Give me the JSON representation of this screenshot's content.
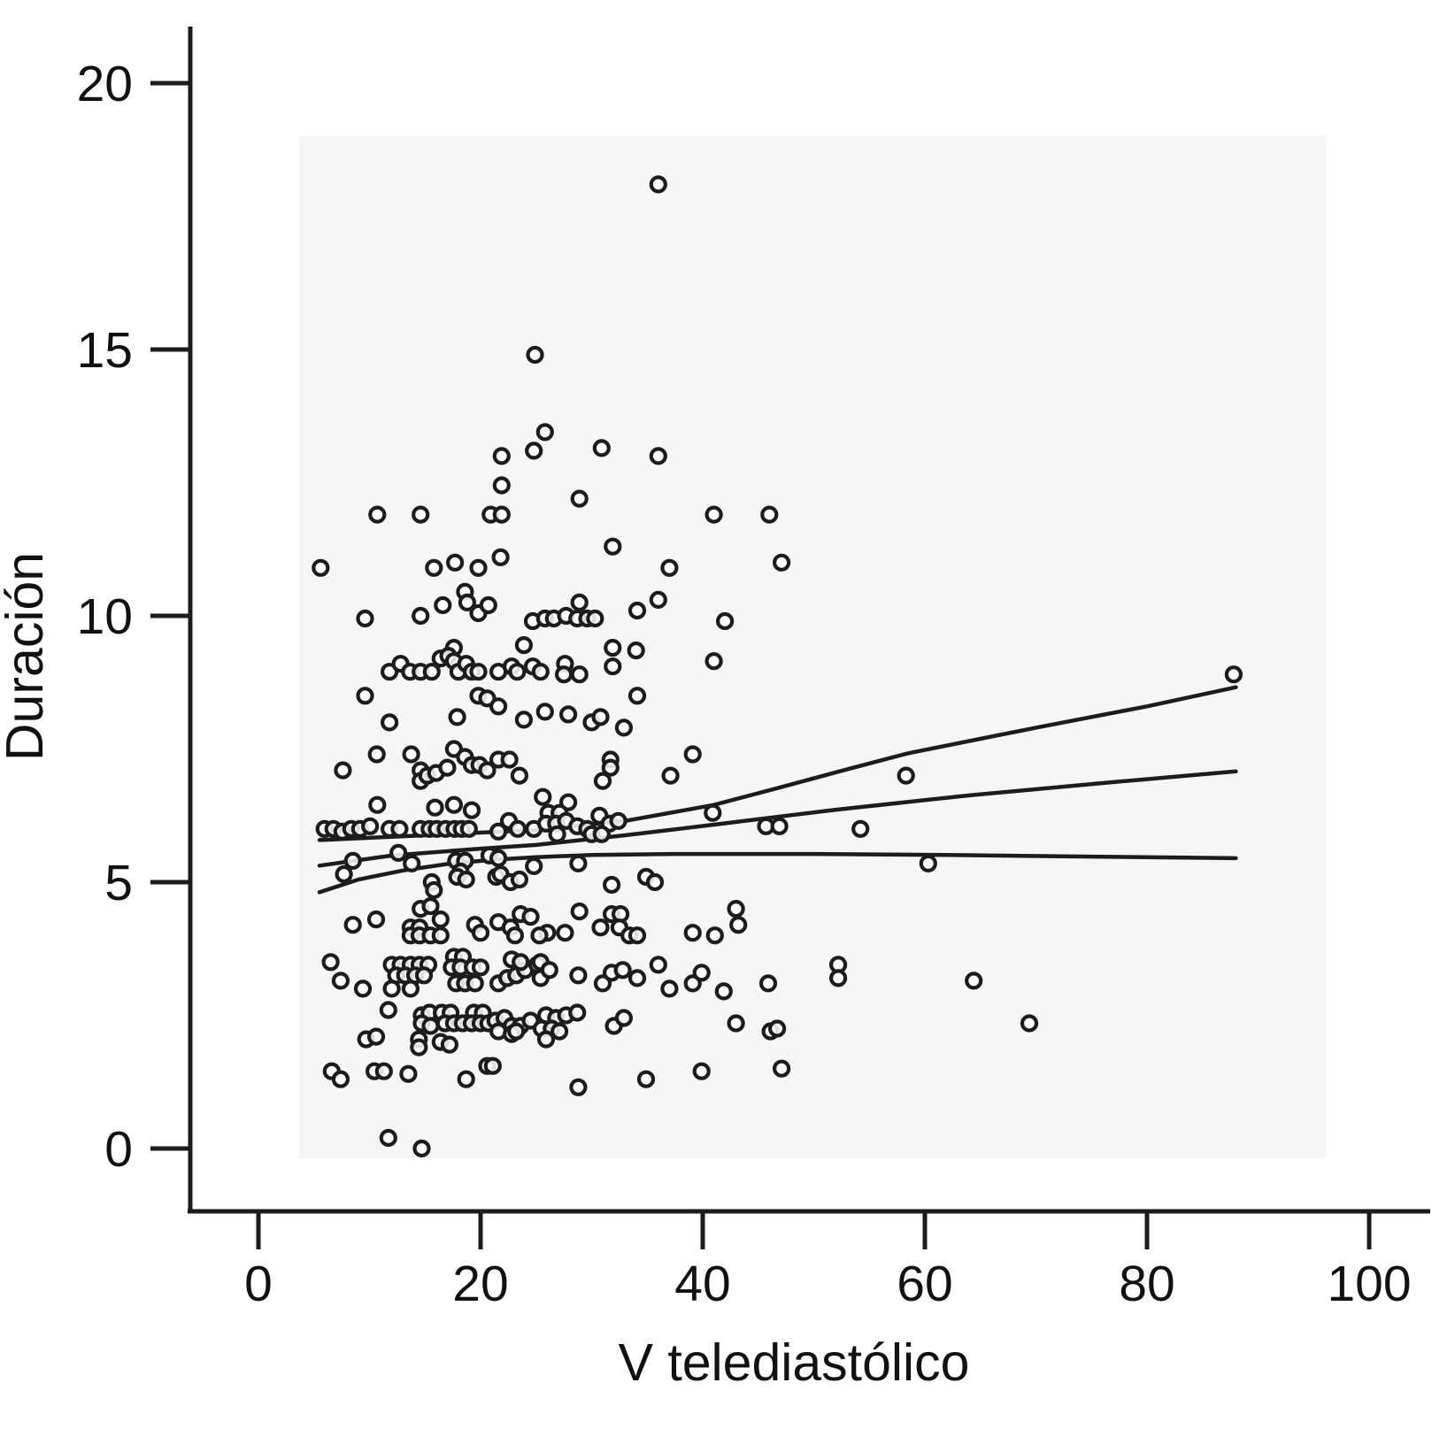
{
  "figure": {
    "ylabel": "Duración",
    "xlabel": "V telediastólico"
  },
  "chart_data": {
    "type": "scatter",
    "title": "",
    "xlabel": "V telediastólico",
    "ylabel": "Duración",
    "x_ticks": [
      0,
      20,
      40,
      60,
      80,
      100
    ],
    "y_ticks": [
      0,
      5,
      10,
      15,
      20
    ],
    "xlim": [
      -6,
      106
    ],
    "ylim": [
      -1.2,
      21.3
    ],
    "grid": false,
    "legend": null,
    "marker": {
      "shape": "open-circle",
      "color": "#1c1c1c",
      "radius_px": 8
    },
    "line_color": "#1c1c1c",
    "plot_bg": "#f6f6f4",
    "points": [
      [
        36,
        18.1
      ],
      [
        24.9,
        14.9
      ],
      [
        25.8,
        13.45
      ],
      [
        21.9,
        13.0
      ],
      [
        24.8,
        13.1
      ],
      [
        30.9,
        13.15
      ],
      [
        36,
        13.0
      ],
      [
        21.9,
        12.45
      ],
      [
        28.9,
        12.2
      ],
      [
        10.7,
        11.9
      ],
      [
        14.6,
        11.9
      ],
      [
        20.9,
        11.9
      ],
      [
        21.9,
        11.9
      ],
      [
        41,
        11.9
      ],
      [
        46,
        11.9
      ],
      [
        5.6,
        10.9
      ],
      [
        15.8,
        10.9
      ],
      [
        17.7,
        11.0
      ],
      [
        19.8,
        10.9
      ],
      [
        21.8,
        11.1
      ],
      [
        31.9,
        11.3
      ],
      [
        37,
        10.9
      ],
      [
        47.1,
        11.0
      ],
      [
        9.6,
        9.95
      ],
      [
        14.6,
        10.0
      ],
      [
        16.6,
        10.2
      ],
      [
        18.6,
        10.45
      ],
      [
        18.8,
        10.25
      ],
      [
        19.8,
        10.05
      ],
      [
        20.7,
        10.2
      ],
      [
        24.7,
        9.9
      ],
      [
        25.8,
        9.95
      ],
      [
        26.6,
        9.95
      ],
      [
        27.7,
        10.0
      ],
      [
        28.7,
        9.95
      ],
      [
        29.6,
        9.95
      ],
      [
        30.3,
        9.95
      ],
      [
        28.9,
        10.25
      ],
      [
        34.1,
        10.1
      ],
      [
        36,
        10.3
      ],
      [
        42,
        9.9
      ],
      [
        17.6,
        9.4
      ],
      [
        23.9,
        9.45
      ],
      [
        31.9,
        9.4
      ],
      [
        34,
        9.35
      ],
      [
        41,
        9.15
      ],
      [
        31.9,
        9.05
      ],
      [
        11.8,
        8.95
      ],
      [
        12.8,
        9.1
      ],
      [
        13.65,
        8.95
      ],
      [
        14.6,
        8.95
      ],
      [
        15.6,
        8.95
      ],
      [
        16.4,
        9.2
      ],
      [
        17.1,
        9.25
      ],
      [
        17.6,
        9.15
      ],
      [
        18,
        8.95
      ],
      [
        18.7,
        9.1
      ],
      [
        19.2,
        8.95
      ],
      [
        19.8,
        8.95
      ],
      [
        21.6,
        8.95
      ],
      [
        22.8,
        9.05
      ],
      [
        23.3,
        8.95
      ],
      [
        24.7,
        9.05
      ],
      [
        25.4,
        8.95
      ],
      [
        27.6,
        9.1
      ],
      [
        27.5,
        8.9
      ],
      [
        28.9,
        8.9
      ],
      [
        9.6,
        8.5
      ],
      [
        19.8,
        8.5
      ],
      [
        20.6,
        8.45
      ],
      [
        21.6,
        8.3
      ],
      [
        23.9,
        8.05
      ],
      [
        17.9,
        8.1
      ],
      [
        11.8,
        8.0
      ],
      [
        34.1,
        8.5
      ],
      [
        25.8,
        8.2
      ],
      [
        27.9,
        8.15
      ],
      [
        30,
        8.0
      ],
      [
        30.8,
        8.1
      ],
      [
        32.9,
        7.9
      ],
      [
        10.65,
        7.4
      ],
      [
        7.6,
        7.1
      ],
      [
        13.75,
        7.4
      ],
      [
        14.6,
        7.1
      ],
      [
        14.6,
        6.9
      ],
      [
        15.2,
        7.0
      ],
      [
        16,
        7.05
      ],
      [
        17,
        7.15
      ],
      [
        17.6,
        7.5
      ],
      [
        18.6,
        7.35
      ],
      [
        19.2,
        7.2
      ],
      [
        19.9,
        7.2
      ],
      [
        20.6,
        7.1
      ],
      [
        21.6,
        7.3
      ],
      [
        22.6,
        7.3
      ],
      [
        23.5,
        7.0
      ],
      [
        39.1,
        7.4
      ],
      [
        31.7,
        7.3
      ],
      [
        31.7,
        7.15
      ],
      [
        31,
        6.9
      ],
      [
        37.1,
        7.0
      ],
      [
        58.3,
        7.0
      ],
      [
        25.6,
        6.6
      ],
      [
        27.9,
        6.5
      ],
      [
        10.7,
        6.45
      ],
      [
        15.9,
        6.4
      ],
      [
        17.6,
        6.45
      ],
      [
        19.2,
        6.35
      ],
      [
        5.95,
        6.0
      ],
      [
        6.75,
        6.0
      ],
      [
        7.55,
        5.95
      ],
      [
        8.35,
        6.0
      ],
      [
        9.15,
        6.0
      ],
      [
        10.05,
        6.05
      ],
      [
        11.8,
        6.0
      ],
      [
        12.7,
        6.0
      ],
      [
        14.6,
        6.0
      ],
      [
        15.4,
        6.0
      ],
      [
        16.05,
        6.0
      ],
      [
        16.85,
        6.0
      ],
      [
        17.65,
        6.0
      ],
      [
        18.3,
        6.0
      ],
      [
        18.95,
        6.0
      ],
      [
        21.6,
        5.95
      ],
      [
        22.55,
        6.15
      ],
      [
        23.35,
        6.0
      ],
      [
        24.8,
        6.0
      ],
      [
        26.1,
        6.3
      ],
      [
        27.1,
        6.3
      ],
      [
        25.9,
        6.1
      ],
      [
        26.8,
        6.1
      ],
      [
        27.7,
        6.15
      ],
      [
        28.7,
        6.05
      ],
      [
        29.6,
        6.0
      ],
      [
        30.7,
        6.25
      ],
      [
        31.6,
        6.1
      ],
      [
        32.4,
        6.15
      ],
      [
        30,
        5.9
      ],
      [
        30.9,
        5.9
      ],
      [
        26.9,
        5.9
      ],
      [
        40.9,
        6.3
      ],
      [
        45.7,
        6.05
      ],
      [
        46.9,
        6.05
      ],
      [
        54.2,
        6.0
      ],
      [
        8.5,
        5.4
      ],
      [
        7.7,
        5.15
      ],
      [
        12.6,
        5.55
      ],
      [
        13.8,
        5.35
      ],
      [
        15.6,
        5.0
      ],
      [
        17.8,
        5.4
      ],
      [
        18.6,
        5.4
      ],
      [
        18.2,
        5.2
      ],
      [
        17.9,
        5.1
      ],
      [
        18.7,
        5.05
      ],
      [
        20.8,
        5.5
      ],
      [
        21.6,
        5.45
      ],
      [
        21.4,
        5.1
      ],
      [
        21.8,
        5.15
      ],
      [
        22.7,
        5.0
      ],
      [
        23.5,
        5.05
      ],
      [
        24.8,
        5.3
      ],
      [
        15.8,
        4.85
      ],
      [
        28.8,
        5.35
      ],
      [
        31.8,
        4.95
      ],
      [
        34.9,
        5.1
      ],
      [
        35.7,
        5.0
      ],
      [
        60.3,
        5.35
      ],
      [
        14.6,
        4.5
      ],
      [
        15.5,
        4.55
      ],
      [
        16.4,
        4.3
      ],
      [
        8.5,
        4.2
      ],
      [
        10.6,
        4.3
      ],
      [
        13.7,
        4.15
      ],
      [
        14.5,
        4.15
      ],
      [
        13.7,
        4.0
      ],
      [
        14.5,
        4.0
      ],
      [
        15.5,
        4.0
      ],
      [
        16.4,
        4.0
      ],
      [
        19.5,
        4.2
      ],
      [
        20,
        4.05
      ],
      [
        21.6,
        4.25
      ],
      [
        22.7,
        4.15
      ],
      [
        23.1,
        4.0
      ],
      [
        23.6,
        4.4
      ],
      [
        24.5,
        4.35
      ],
      [
        28.9,
        4.45
      ],
      [
        31.8,
        4.4
      ],
      [
        32.6,
        4.4
      ],
      [
        30.8,
        4.15
      ],
      [
        32.5,
        4.15
      ],
      [
        33.4,
        4.0
      ],
      [
        34.1,
        4.0
      ],
      [
        27.6,
        4.05
      ],
      [
        26,
        4.05
      ],
      [
        25.3,
        4.0
      ],
      [
        39.1,
        4.05
      ],
      [
        41.1,
        4.0
      ],
      [
        43,
        4.5
      ],
      [
        43.2,
        4.2
      ],
      [
        6.5,
        3.5
      ],
      [
        7.4,
        3.15
      ],
      [
        9.4,
        3.0
      ],
      [
        12,
        3.45
      ],
      [
        12.8,
        3.45
      ],
      [
        13.7,
        3.45
      ],
      [
        14.5,
        3.45
      ],
      [
        15.3,
        3.45
      ],
      [
        12.4,
        3.25
      ],
      [
        13.2,
        3.25
      ],
      [
        14.1,
        3.25
      ],
      [
        14.9,
        3.25
      ],
      [
        12,
        3.0
      ],
      [
        13.7,
        3.0
      ],
      [
        17.6,
        3.6
      ],
      [
        18.4,
        3.6
      ],
      [
        17.4,
        3.4
      ],
      [
        18.2,
        3.4
      ],
      [
        19.3,
        3.4
      ],
      [
        20,
        3.4
      ],
      [
        17.8,
        3.1
      ],
      [
        18.6,
        3.1
      ],
      [
        19.5,
        3.1
      ],
      [
        21.6,
        3.1
      ],
      [
        22.4,
        3.2
      ],
      [
        23.2,
        3.25
      ],
      [
        24,
        3.35
      ],
      [
        22.8,
        3.55
      ],
      [
        23.6,
        3.5
      ],
      [
        25.1,
        3.45
      ],
      [
        25.4,
        3.5
      ],
      [
        25.4,
        3.2
      ],
      [
        26.2,
        3.35
      ],
      [
        28.8,
        3.25
      ],
      [
        31,
        3.1
      ],
      [
        31.8,
        3.3
      ],
      [
        32.8,
        3.35
      ],
      [
        34.1,
        3.2
      ],
      [
        36,
        3.45
      ],
      [
        37,
        3.0
      ],
      [
        39.1,
        3.1
      ],
      [
        39.9,
        3.3
      ],
      [
        41.9,
        2.95
      ],
      [
        45.9,
        3.1
      ],
      [
        52.2,
        3.45
      ],
      [
        52.2,
        3.2
      ],
      [
        64.4,
        3.15
      ],
      [
        11.7,
        2.6
      ],
      [
        14.7,
        2.5
      ],
      [
        15.4,
        2.55
      ],
      [
        14.7,
        2.35
      ],
      [
        15.5,
        2.3
      ],
      [
        16.5,
        2.55
      ],
      [
        17.3,
        2.55
      ],
      [
        19.4,
        2.55
      ],
      [
        20.2,
        2.55
      ],
      [
        16.8,
        2.35
      ],
      [
        17.6,
        2.35
      ],
      [
        18.4,
        2.35
      ],
      [
        19.2,
        2.35
      ],
      [
        20,
        2.35
      ],
      [
        20.7,
        2.35
      ],
      [
        21.35,
        2.4
      ],
      [
        22.15,
        2.45
      ],
      [
        21.6,
        2.2
      ],
      [
        22.8,
        2.3
      ],
      [
        23.6,
        2.3
      ],
      [
        22.8,
        2.15
      ],
      [
        24.5,
        2.4
      ],
      [
        23.2,
        2.2
      ],
      [
        9.7,
        2.05
      ],
      [
        10.6,
        2.1
      ],
      [
        14.45,
        2.05
      ],
      [
        14.45,
        1.9
      ],
      [
        16.4,
        2.0
      ],
      [
        17.2,
        1.95
      ],
      [
        25.9,
        2.5
      ],
      [
        26.8,
        2.45
      ],
      [
        27.7,
        2.5
      ],
      [
        28.7,
        2.55
      ],
      [
        25.5,
        2.25
      ],
      [
        26.4,
        2.25
      ],
      [
        27.1,
        2.2
      ],
      [
        25.9,
        2.05
      ],
      [
        32,
        2.3
      ],
      [
        32.9,
        2.45
      ],
      [
        43,
        2.35
      ],
      [
        46.1,
        2.2
      ],
      [
        46.7,
        2.25
      ],
      [
        69.4,
        2.35
      ],
      [
        6.6,
        1.45
      ],
      [
        7.4,
        1.3
      ],
      [
        10.45,
        1.45
      ],
      [
        11.3,
        1.45
      ],
      [
        13.5,
        1.4
      ],
      [
        18.7,
        1.3
      ],
      [
        20.6,
        1.55
      ],
      [
        21.1,
        1.55
      ],
      [
        39.9,
        1.45
      ],
      [
        34.9,
        1.3
      ],
      [
        28.8,
        1.15
      ],
      [
        47.1,
        1.5
      ],
      [
        11.7,
        0.2
      ],
      [
        14.7,
        0.0
      ],
      [
        87.8,
        8.9
      ]
    ],
    "regression_lines": [
      {
        "name": "upper-band",
        "xy": [
          [
            5.5,
            5.79
          ],
          [
            15,
            5.88
          ],
          [
            25,
            5.98
          ],
          [
            33,
            6.15
          ],
          [
            41,
            6.45
          ],
          [
            47,
            6.78
          ],
          [
            53,
            7.12
          ],
          [
            58.5,
            7.42
          ],
          [
            70,
            7.9
          ],
          [
            80,
            8.3
          ],
          [
            88,
            8.66
          ]
        ]
      },
      {
        "name": "fit",
        "xy": [
          [
            5.5,
            5.31
          ],
          [
            12,
            5.5
          ],
          [
            20,
            5.63
          ],
          [
            25,
            5.7
          ],
          [
            33,
            5.88
          ],
          [
            41,
            6.08
          ],
          [
            52,
            6.36
          ],
          [
            64,
            6.63
          ],
          [
            76,
            6.86
          ],
          [
            88,
            7.08
          ]
        ]
      },
      {
        "name": "lower-band",
        "xy": [
          [
            5.5,
            4.81
          ],
          [
            9,
            5.05
          ],
          [
            13,
            5.22
          ],
          [
            17,
            5.34
          ],
          [
            21,
            5.42
          ],
          [
            25,
            5.47
          ],
          [
            30,
            5.51
          ],
          [
            38,
            5.53
          ],
          [
            50,
            5.53
          ],
          [
            62,
            5.51
          ],
          [
            75,
            5.48
          ],
          [
            88,
            5.45
          ]
        ]
      }
    ]
  }
}
